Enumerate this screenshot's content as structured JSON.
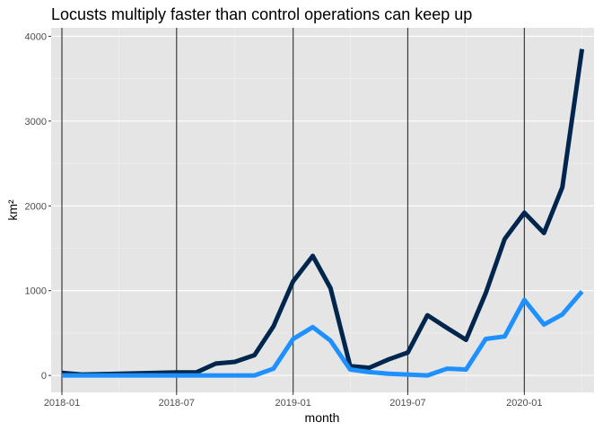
{
  "chart_data": {
    "type": "line",
    "title": "Locusts multiply faster than control operations can keep up",
    "xlabel": "month",
    "ylabel": "km²",
    "x_ticks": [
      "2018-01",
      "2018-07",
      "2019-01",
      "2019-07",
      "2020-01"
    ],
    "y_ticks": [
      0,
      1000,
      2000,
      3000,
      4000
    ],
    "xlim": [
      "2017-12-15",
      "2020-04-20"
    ],
    "ylim": [
      -200,
      4100
    ],
    "grid": true,
    "vlines": [
      "2018-01",
      "2018-07",
      "2019-01",
      "2019-07",
      "2020-01"
    ],
    "x": [
      "2018-01",
      "2018-02",
      "2018-03",
      "2018-04",
      "2018-05",
      "2018-06",
      "2018-07",
      "2018-08",
      "2018-09",
      "2018-10",
      "2018-11",
      "2018-12",
      "2019-01",
      "2019-02",
      "2019-03",
      "2019-04",
      "2019-05",
      "2019-06",
      "2019-07",
      "2019-08",
      "2019-09",
      "2019-10",
      "2019-11",
      "2019-12",
      "2020-01",
      "2020-02",
      "2020-03",
      "2020-04"
    ],
    "series": [
      {
        "color": "#00264d",
        "values": [
          30,
          10,
          15,
          20,
          25,
          30,
          35,
          35,
          140,
          160,
          240,
          580,
          1110,
          1410,
          1030,
          110,
          90,
          190,
          270,
          710,
          560,
          420,
          970,
          1610,
          1920,
          1680,
          2220,
          3850
        ]
      },
      {
        "color": "#1e90ff",
        "values": [
          0,
          0,
          0,
          0,
          0,
          0,
          0,
          0,
          0,
          0,
          0,
          80,
          430,
          570,
          410,
          70,
          40,
          20,
          10,
          0,
          80,
          70,
          430,
          460,
          890,
          600,
          720,
          990
        ]
      }
    ]
  }
}
